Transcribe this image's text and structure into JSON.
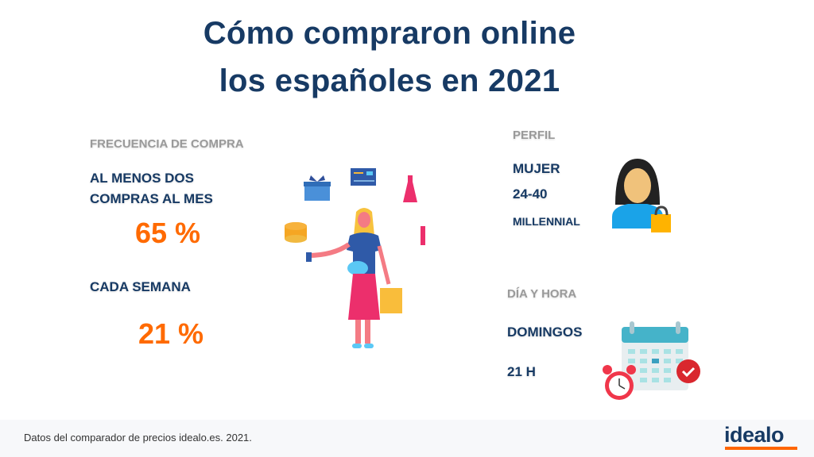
{
  "title": {
    "line1": "Cómo compraron online",
    "line2": "los españoles en 2021"
  },
  "frequency": {
    "label": "FRECUENCIA DE COMPRA",
    "item1_line1": "AL MENOS DOS",
    "item1_line2": "COMPRAS AL MES",
    "item1_value": "65 %",
    "item2_label": "CADA SEMANA",
    "item2_value": "21 %"
  },
  "profile": {
    "label": "PERFIL",
    "gender": "MUJER",
    "age": "24-40",
    "generation": "MILLENNIAL"
  },
  "day_time": {
    "label": "DÍA Y HORA",
    "day": "DOMINGOS",
    "hour": "21 H"
  },
  "footer": {
    "source": "Datos del comparador de precios idealo.es. 2021.",
    "logo": "idealo"
  },
  "colors": {
    "navy": "#173a64",
    "orange": "#ff6a00",
    "gray": "#9a9a9a"
  }
}
